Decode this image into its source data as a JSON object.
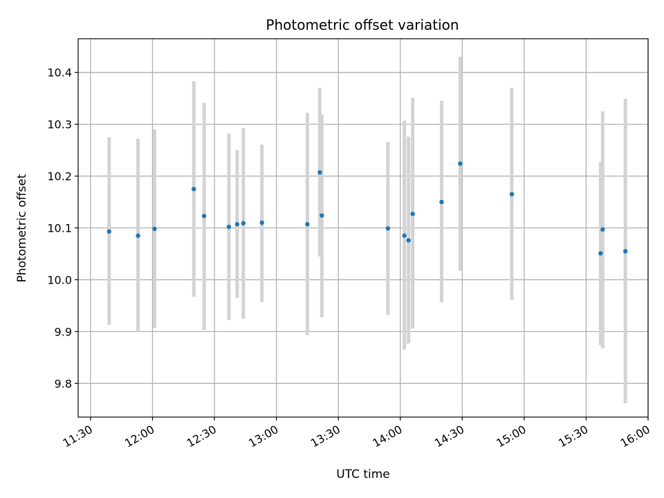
{
  "chart_data": {
    "type": "scatter",
    "title": "Photometric offset variation",
    "xlabel": "UTC time",
    "ylabel": "Photometric offset",
    "x_axis": {
      "type": "time",
      "xlim": [
        "11:24",
        "16:00"
      ],
      "ticks": [
        "11:30",
        "12:00",
        "12:30",
        "13:00",
        "13:30",
        "14:00",
        "14:30",
        "15:00",
        "15:30",
        "16:00"
      ]
    },
    "y_axis": {
      "ylim": [
        9.735,
        10.465
      ],
      "ticks": [
        "9.8",
        "9.9",
        "10.0",
        "10.1",
        "10.2",
        "10.3",
        "10.4"
      ]
    },
    "grid": true,
    "colors": {
      "point": "#1f77b4",
      "errorbar": "#d3d3d3",
      "grid": "#b0b0b0"
    },
    "series": [
      {
        "points": [
          {
            "x": "11:39",
            "y": 10.093,
            "lo": 9.913,
            "hi": 10.275
          },
          {
            "x": "11:53",
            "y": 10.085,
            "lo": 9.9,
            "hi": 10.272
          },
          {
            "x": "12:01",
            "y": 10.098,
            "lo": 9.907,
            "hi": 10.29
          },
          {
            "x": "12:20",
            "y": 10.175,
            "lo": 9.967,
            "hi": 10.383
          },
          {
            "x": "12:25",
            "y": 10.123,
            "lo": 9.903,
            "hi": 10.341
          },
          {
            "x": "12:37",
            "y": 10.102,
            "lo": 9.922,
            "hi": 10.282
          },
          {
            "x": "12:41",
            "y": 10.107,
            "lo": 9.965,
            "hi": 10.25
          },
          {
            "x": "12:44",
            "y": 10.109,
            "lo": 9.925,
            "hi": 10.293
          },
          {
            "x": "12:53",
            "y": 10.11,
            "lo": 9.957,
            "hi": 10.261
          },
          {
            "x": "13:15",
            "y": 10.107,
            "lo": 9.893,
            "hi": 10.322
          },
          {
            "x": "13:21",
            "y": 10.207,
            "lo": 10.045,
            "hi": 10.37
          },
          {
            "x": "13:22",
            "y": 10.124,
            "lo": 9.928,
            "hi": 10.319
          },
          {
            "x": "13:54",
            "y": 10.099,
            "lo": 9.932,
            "hi": 10.266
          },
          {
            "x": "14:02",
            "y": 10.085,
            "lo": 9.865,
            "hi": 10.307
          },
          {
            "x": "14:04",
            "y": 10.076,
            "lo": 9.877,
            "hi": 10.276
          },
          {
            "x": "14:06",
            "y": 10.127,
            "lo": 9.906,
            "hi": 10.351
          },
          {
            "x": "14:20",
            "y": 10.15,
            "lo": 9.956,
            "hi": 10.345
          },
          {
            "x": "14:29",
            "y": 10.224,
            "lo": 10.017,
            "hi": 10.43
          },
          {
            "x": "14:54",
            "y": 10.165,
            "lo": 9.961,
            "hi": 10.37
          },
          {
            "x": "15:37",
            "y": 10.051,
            "lo": 9.874,
            "hi": 10.228
          },
          {
            "x": "15:38",
            "y": 10.097,
            "lo": 9.868,
            "hi": 10.325
          },
          {
            "x": "15:49",
            "y": 10.055,
            "lo": 9.762,
            "hi": 10.349
          }
        ]
      }
    ]
  }
}
